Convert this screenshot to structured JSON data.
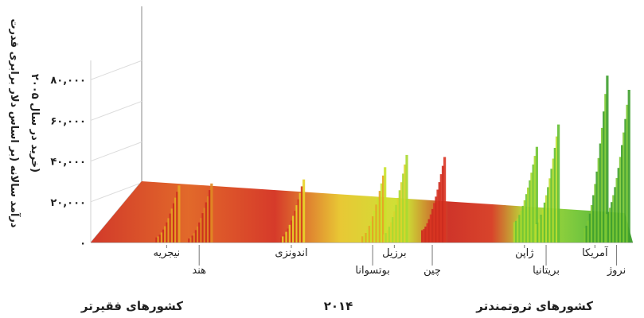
{
  "chart_data": {
    "type": "bar",
    "title": "",
    "ylabel_line1": "درآمد سالانه (بر اساس دلار برابری قدرت",
    "ylabel_line2": "خرید در سال ۲۰۰۵)",
    "y_ticks": [
      {
        "value": 0,
        "label": "۰"
      },
      {
        "value": 20000,
        "label": "۲۰,۰۰۰"
      },
      {
        "value": 40000,
        "label": "۴۰,۰۰۰"
      },
      {
        "value": 60000,
        "label": "۶۰,۰۰۰"
      },
      {
        "value": 80000,
        "label": "۸۰,۰۰۰"
      }
    ],
    "ylim": [
      0,
      85000
    ],
    "x_description": "countries ordered from poorer (left) to richer (right); within each country, population ordered by income percentile (depth)",
    "year_label": "۲۰۱۴",
    "group_labels": {
      "poorer": "کشورهای فقیرتر",
      "richer": "کشورهای ثروتمندتر"
    },
    "countries": [
      {
        "name": "نیجریه",
        "income_range": [
          2500,
          28000
        ],
        "position": 0.14,
        "colors": [
          "#cc2a1e",
          "#e6a324"
        ]
      },
      {
        "name": "هند",
        "income_range": [
          2000,
          29000
        ],
        "position": 0.2,
        "colors": [
          "#cc2a1e",
          "#e08a23"
        ]
      },
      {
        "name": "اندونزی",
        "income_range": [
          2500,
          31000
        ],
        "position": 0.37,
        "colors": [
          "#d13a1f",
          "#e8d32a"
        ]
      },
      {
        "name": "بوتسوانا",
        "income_range": [
          3000,
          37000
        ],
        "position": 0.52,
        "colors": [
          "#e6a324",
          "#c9e22b"
        ]
      },
      {
        "name": "برزیل",
        "income_range": [
          4000,
          43000
        ],
        "position": 0.56,
        "colors": [
          "#d8d42c",
          "#a8d930"
        ]
      },
      {
        "name": "چین",
        "income_range": [
          6000,
          42000
        ],
        "position": 0.63,
        "colors": [
          "#cc2a1e",
          "#d93322"
        ]
      },
      {
        "name": "ژاپن",
        "income_range": [
          10000,
          47000
        ],
        "position": 0.8,
        "colors": [
          "#a8d930",
          "#6fc434"
        ]
      },
      {
        "name": "بریتانیا",
        "income_range": [
          9000,
          58000
        ],
        "position": 0.84,
        "colors": [
          "#b9dd2f",
          "#63bf33"
        ]
      },
      {
        "name": "آمریکا",
        "income_range": [
          7000,
          82000
        ],
        "position": 0.93,
        "colors": [
          "#7dc934",
          "#3e9e2e"
        ]
      },
      {
        "name": "نروژ",
        "income_range": [
          14000,
          75000
        ],
        "position": 0.97,
        "colors": [
          "#7dc934",
          "#3e9e2e"
        ]
      }
    ]
  }
}
